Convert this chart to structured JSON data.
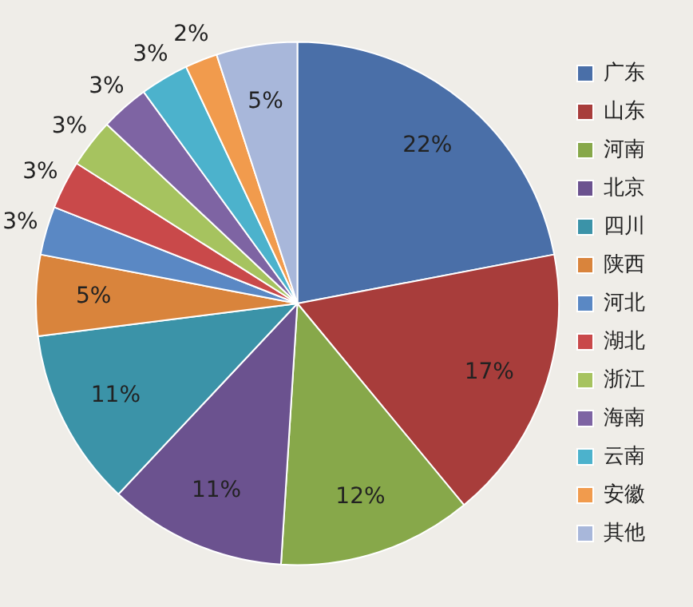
{
  "chart_data": {
    "type": "pie",
    "categories": [
      "广东",
      "山东",
      "河南",
      "北京",
      "四川",
      "陕西",
      "河北",
      "湖北",
      "浙江",
      "海南",
      "云南",
      "安徽",
      "其他"
    ],
    "values": [
      22,
      17,
      12,
      11,
      11,
      5,
      3,
      3,
      3,
      3,
      3,
      2,
      5
    ],
    "value_labels": [
      "22%",
      "17%",
      "12%",
      "11%",
      "11%",
      "5%",
      "3%",
      "3%",
      "3%",
      "3%",
      "3%",
      "2%",
      "5%"
    ],
    "colors": [
      "#4a6fa8",
      "#a83d3b",
      "#87a84a",
      "#6b528f",
      "#3b93a8",
      "#d9843c",
      "#5a88c4",
      "#c9494a",
      "#a6c35f",
      "#7e64a3",
      "#4cb2cc",
      "#f19b4d",
      "#a8b7da"
    ],
    "legend": "right"
  }
}
